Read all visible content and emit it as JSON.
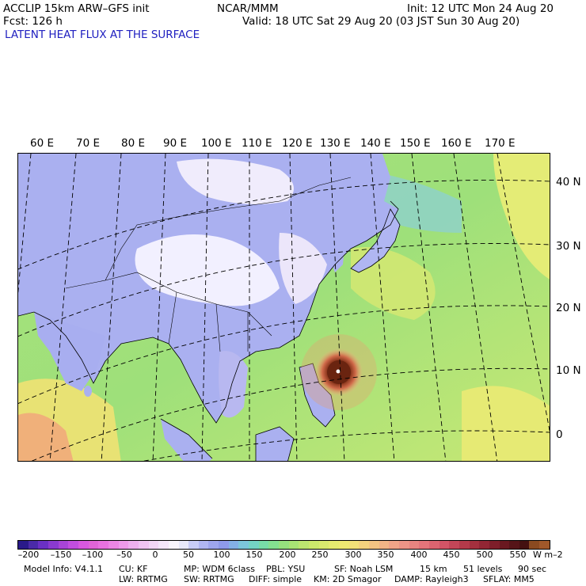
{
  "header": {
    "model": "ACCLIP 15km ARW–GFS init",
    "org": "NCAR/MMM",
    "init": "Init: 12 UTC Mon 24 Aug 20",
    "fcst": "Fcst:  126 h",
    "valid": "Valid: 18 UTC Sat 29 Aug 20 (03 JST Sun 30 Aug 20)",
    "field": "LATENT HEAT FLUX AT THE SURFACE"
  },
  "map": {
    "lon_labels": [
      "60 E",
      "70 E",
      "80 E",
      "90 E",
      "100 E",
      "110 E",
      "120 E",
      "130 E",
      "140 E",
      "150 E",
      "160 E",
      "170 E"
    ],
    "lat_labels": [
      "40 N",
      "30 N",
      "20 N",
      "10 N",
      "0"
    ],
    "colors": {
      "ocean_green": "#9de07a",
      "ocean_yellow": "#e6ec7a",
      "land_lavender": "#aab0f0",
      "land_white": "#f2f0ff",
      "typhoon_core": "#6a2410",
      "typhoon_ring": "#e88a5a"
    }
  },
  "colorbar": {
    "tick_labels": [
      "–200",
      "–150",
      "–100",
      "–50",
      "0",
      "50",
      "100",
      "150",
      "200",
      "250",
      "300",
      "350",
      "400",
      "450",
      "500",
      "550"
    ],
    "units": "W m–2",
    "colors": [
      "#2a1a8a",
      "#4a2aa8",
      "#6a30c4",
      "#8a3ad0",
      "#a844d8",
      "#c24ee0",
      "#d858e0",
      "#e064d8",
      "#e872e0",
      "#ec86e4",
      "#ee9aea",
      "#eeb0ee",
      "#f0c4f2",
      "#f2d6f6",
      "#f4e6fa",
      "#f8f4fc",
      "#e8e8fa",
      "#c8ccf6",
      "#b0b6f2",
      "#9ea6ee",
      "#8e9aea",
      "#84b0e6",
      "#7cc6da",
      "#74d4c4",
      "#78dca8",
      "#84e090",
      "#96e27e",
      "#a8e474",
      "#bce670",
      "#cce86c",
      "#dae96e",
      "#e6ea70",
      "#eee872",
      "#f2e078",
      "#f4d27e",
      "#f4c482",
      "#f2b486",
      "#f0a488",
      "#ec9486",
      "#e88480",
      "#e4747a",
      "#dc6470",
      "#d25466",
      "#c44658",
      "#b43a4a",
      "#a4303e",
      "#922634",
      "#7e1e2a",
      "#6a1820",
      "#561418",
      "#441010",
      "#8a4a20",
      "#a0582a"
    ]
  },
  "model_info": {
    "line1": [
      "Model Info: V4.1.1",
      "CU: KF",
      "MP: WDM 6class",
      "PBL: YSU",
      "SF: Noah LSM",
      "15 km",
      "51 levels",
      "90 sec"
    ],
    "line2": [
      "LW: RRTMG",
      "SW: RRTMG",
      "DIFF: simple",
      "KM: 2D Smagor",
      "DAMP: Rayleigh3",
      "SFLAY: MM5"
    ]
  }
}
